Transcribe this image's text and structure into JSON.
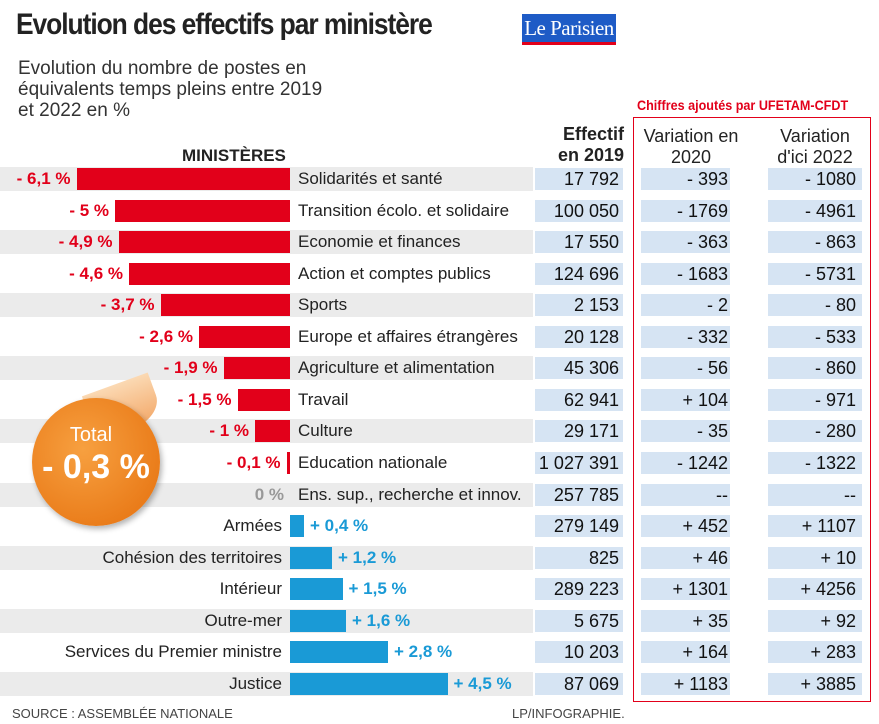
{
  "header": {
    "title": "Evolution des effectifs par ministère",
    "logo": "Le Parisien",
    "subtitle": "Evolution du nombre de postes en équivalents temps pleins entre 2019 et 2022 en %",
    "added_note": "Chiffres ajoutés par UFETAM-CFDT"
  },
  "columns": {
    "ministries": "MINISTÈRES",
    "effectif": "Effectif en 2019",
    "var2020": "Variation en 2020",
    "var2022": "Variation d'ici 2022"
  },
  "total": {
    "label": "Total",
    "value": "- 0,3 %"
  },
  "footer": {
    "source": "SOURCE : ASSEMBLÉE NATIONALE",
    "credit": "LP/INFOGRAPHIE."
  },
  "colors": {
    "negative": "#e2001a",
    "positive": "#1a9ad6",
    "zero": "#999999",
    "highlight_box": "#e2001a"
  },
  "chart_data": {
    "type": "bar",
    "orientation": "horizontal",
    "title": "Evolution des effectifs par ministère",
    "xlabel": "",
    "ylabel": "",
    "categories": [
      "Solidarités et santé",
      "Transition écolo. et solidaire",
      "Economie et finances",
      "Action et comptes publics",
      "Sports",
      "Europe et affaires étrangères",
      "Agriculture et alimentation",
      "Travail",
      "Culture",
      "Education nationale",
      "Ens. sup., recherche et innov.",
      "Armées",
      "Cohésion des territoires",
      "Intérieur",
      "Outre-mer",
      "Services du Premier ministre",
      "Justice"
    ],
    "values": [
      -6.1,
      -5,
      -4.9,
      -4.6,
      -3.7,
      -2.6,
      -1.9,
      -1.5,
      -1,
      -0.1,
      0,
      0.4,
      1.2,
      1.5,
      1.6,
      2.8,
      4.5
    ],
    "labels": [
      "- 6,1 %",
      "- 5 %",
      "- 4,9 %",
      "- 4,6 %",
      "- 3,7 %",
      "- 2,6 %",
      "- 1,9 %",
      "- 1,5 %",
      "- 1 %",
      "- 0,1 %",
      "0 %",
      "+ 0,4 %",
      "+ 1,2 %",
      "+ 1,5 %",
      "+ 1,6 %",
      "+ 2,8 %",
      "+ 4,5 %"
    ],
    "effectif_2019": [
      "17 792",
      "100 050",
      "17 550",
      "124 696",
      "2 153",
      "20 128",
      "45 306",
      "62 941",
      "29 171",
      "1 027 391",
      "257 785",
      "279 149",
      "825",
      "289 223",
      "5 675",
      "10 203",
      "87 069"
    ],
    "variation_2020": [
      "- 393",
      "- 1769",
      "- 363",
      "- 1683",
      "- 2",
      "- 332",
      "- 56",
      "+ 104",
      "- 35",
      "- 1242",
      "--",
      "+ 452",
      "+ 46",
      "+ 1301",
      "+ 35",
      "+ 164",
      "+ 1183"
    ],
    "variation_2022": [
      "- 1080",
      "- 4961",
      "- 863",
      "- 5731",
      "- 80",
      "- 533",
      "- 860",
      "- 971",
      "- 280",
      "- 1322",
      "--",
      "+ 1107",
      "+ 10",
      "+ 4256",
      "+ 92",
      "+ 283",
      "+ 3885"
    ]
  }
}
